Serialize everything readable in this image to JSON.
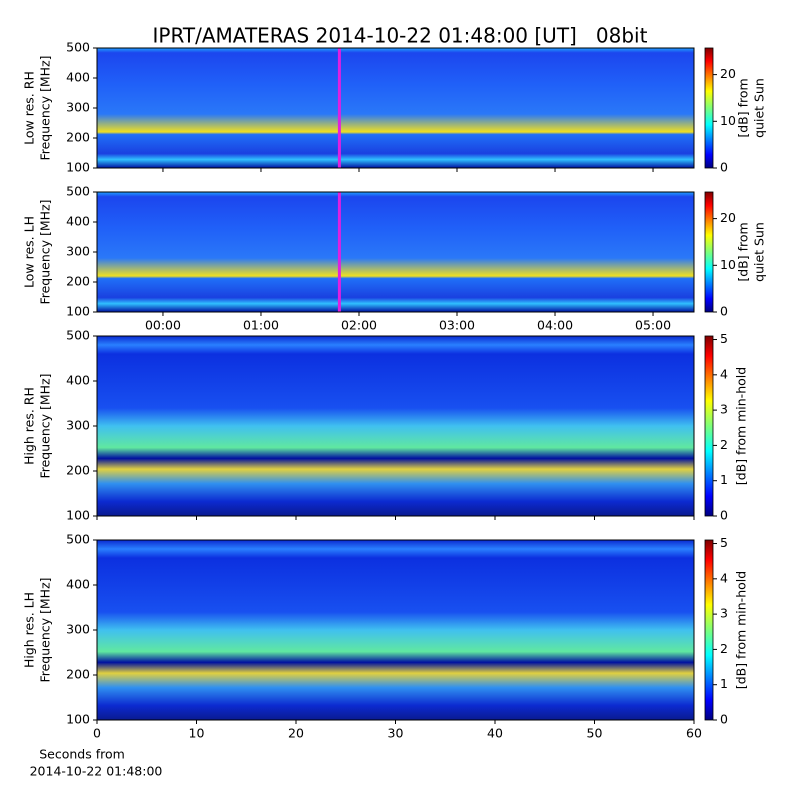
{
  "chart_data": [
    {
      "type": "heatmap",
      "title": "IPRT/AMATERAS 2014-10-22 01:48:00 [UT]   08bit",
      "ylabel": [
        "Low res. RH",
        "Frequency [MHz]"
      ],
      "ylim": [
        100,
        500
      ],
      "yticks": [
        100,
        200,
        300,
        400,
        500
      ],
      "xlim": [
        -0.673,
        5.418
      ],
      "marker_x": 1.8,
      "marker_color": "#e020e0",
      "colorbar_label": [
        "[dB] from",
        "quiet Sun"
      ],
      "clim": [
        0,
        25.7
      ],
      "cticks": [
        0,
        10,
        20
      ]
    },
    {
      "type": "heatmap",
      "ylabel": [
        "Low res. LH",
        "Frequency [MHz]"
      ],
      "ylim": [
        100,
        500
      ],
      "yticks": [
        100,
        200,
        300,
        400,
        500
      ],
      "xlim": [
        -0.673,
        5.418
      ],
      "xticks": [
        {
          "value": 0,
          "label": "00:00"
        },
        {
          "value": 1,
          "label": "01:00"
        },
        {
          "value": 2,
          "label": "02:00"
        },
        {
          "value": 3,
          "label": "03:00"
        },
        {
          "value": 4,
          "label": "04:00"
        },
        {
          "value": 5,
          "label": "05:00"
        }
      ],
      "marker_x": 1.8,
      "marker_color": "#e020e0",
      "colorbar_label": [
        "[dB] from",
        "quiet Sun"
      ],
      "clim": [
        0,
        25.7
      ],
      "cticks": [
        0,
        10,
        20
      ]
    },
    {
      "type": "heatmap",
      "ylabel": [
        "High res. RH",
        "Frequency [MHz]"
      ],
      "ylim": [
        100,
        500
      ],
      "yticks": [
        100,
        200,
        300,
        400,
        500
      ],
      "xlim": [
        0,
        60
      ],
      "colorbar_label": [
        "[dB] from min-hold"
      ],
      "clim": [
        0,
        5.1
      ],
      "cticks": [
        0,
        1,
        2,
        3,
        4,
        5
      ]
    },
    {
      "type": "heatmap",
      "ylabel": [
        "High res. LH",
        "Frequency [MHz]"
      ],
      "ylim": [
        100,
        500
      ],
      "yticks": [
        100,
        200,
        300,
        400,
        500
      ],
      "xlim": [
        0,
        60
      ],
      "xticks": [
        0,
        10,
        20,
        30,
        40,
        50,
        60
      ],
      "xlabel": [
        "Seconds from",
        "2014-10-22 01:48:00"
      ],
      "colorbar_label": [
        "[dB] from min-hold"
      ],
      "clim": [
        0,
        5.1
      ],
      "cticks": [
        0,
        1,
        2,
        3,
        4,
        5
      ]
    }
  ]
}
